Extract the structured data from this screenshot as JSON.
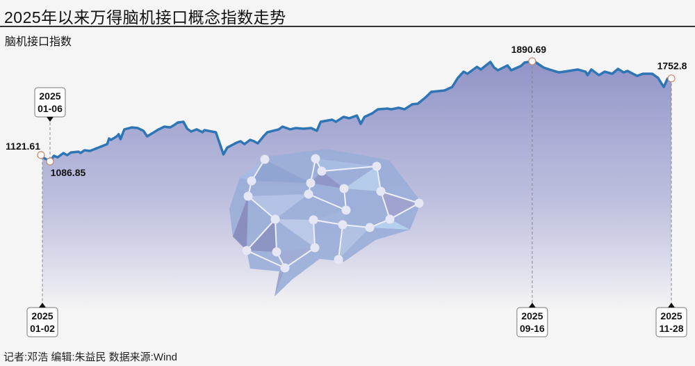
{
  "title": "2025年以来万得脑机接口概念指数走势",
  "subtitle": "脑机接口指数",
  "footer": "记者:邓浩  编辑:朱益民  数据来源:Wind",
  "colors": {
    "line": "#2e75b6",
    "fill_top": "#8c8fc4",
    "background": "#f5f5f5",
    "marker": "#c9866e"
  },
  "illustration": "brain-network-icon",
  "chart_data": {
    "type": "area",
    "title": "2025年以来万得脑机接口概念指数走势",
    "ylabel": "脑机接口指数",
    "xlabel": "",
    "grid": false,
    "annotations": [
      {
        "date": "2025-01-02",
        "value": 1121.61,
        "label": "1121.61",
        "date_label": [
          "2025",
          "01-02"
        ]
      },
      {
        "date": "2025-01-06",
        "value": 1086.85,
        "label": "1086.85",
        "date_label": [
          "2025",
          "01-06"
        ]
      },
      {
        "date": "2025-09-16",
        "value": 1890.69,
        "label": "1890.69",
        "date_label": [
          "2025",
          "09-16"
        ]
      },
      {
        "date": "2025-11-28",
        "value": 1752.8,
        "label": "1752.8",
        "date_label": [
          "2025",
          "11-28"
        ]
      }
    ],
    "x": [
      "2025-01-02",
      "2025-01-06",
      "2025-01-08",
      "2025-01-10",
      "2025-01-13",
      "2025-01-15",
      "2025-01-17",
      "2025-01-21",
      "2025-01-22",
      "2025-01-24",
      "2025-01-27",
      "2025-02-05",
      "2025-02-06",
      "2025-02-07",
      "2025-02-10",
      "2025-02-11",
      "2025-02-12",
      "2025-02-14",
      "2025-02-18",
      "2025-02-21",
      "2025-02-24",
      "2025-02-26",
      "2025-03-04",
      "2025-03-07",
      "2025-03-10",
      "2025-03-12",
      "2025-03-14",
      "2025-03-17",
      "2025-03-19",
      "2025-03-21",
      "2025-03-24",
      "2025-03-27",
      "2025-03-28",
      "2025-04-03",
      "2025-04-07",
      "2025-04-09",
      "2025-04-14",
      "2025-04-16",
      "2025-04-18",
      "2025-04-21",
      "2025-04-23",
      "2025-04-25",
      "2025-04-28",
      "2025-04-30",
      "2025-05-06",
      "2025-05-08",
      "2025-05-12",
      "2025-05-15",
      "2025-05-19",
      "2025-05-23",
      "2025-05-26",
      "2025-05-28",
      "2025-06-03",
      "2025-06-05",
      "2025-06-09",
      "2025-06-12",
      "2025-06-16",
      "2025-06-18",
      "2025-06-20",
      "2025-06-24",
      "2025-06-27",
      "2025-07-02",
      "2025-07-04",
      "2025-07-08",
      "2025-07-11",
      "2025-07-15",
      "2025-07-18",
      "2025-07-22",
      "2025-07-25",
      "2025-08-01",
      "2025-08-05",
      "2025-08-08",
      "2025-08-11",
      "2025-08-13",
      "2025-08-18",
      "2025-08-20",
      "2025-08-25",
      "2025-08-27",
      "2025-08-29",
      "2025-09-03",
      "2025-09-05",
      "2025-09-10",
      "2025-09-12",
      "2025-09-16",
      "2025-09-18",
      "2025-09-22",
      "2025-09-25",
      "2025-09-30",
      "2025-10-10",
      "2025-10-14",
      "2025-10-15",
      "2025-10-17",
      "2025-10-21",
      "2025-10-24",
      "2025-10-28",
      "2025-10-31",
      "2025-11-03",
      "2025-11-05",
      "2025-11-10",
      "2025-11-13",
      "2025-11-18",
      "2025-11-21",
      "2025-11-24",
      "2025-11-26",
      "2025-11-28"
    ],
    "values": [
      1121.61,
      1086.85,
      1132,
      1120,
      1154,
      1137,
      1159,
      1165,
      1154,
      1176,
      1171,
      1226,
      1271,
      1260,
      1288,
      1305,
      1265,
      1344,
      1360,
      1355,
      1333,
      1288,
      1344,
      1366,
      1360,
      1377,
      1399,
      1405,
      1349,
      1327,
      1344,
      1321,
      1338,
      1321,
      1143,
      1198,
      1238,
      1249,
      1226,
      1260,
      1249,
      1232,
      1288,
      1321,
      1344,
      1366,
      1344,
      1355,
      1349,
      1355,
      1333,
      1405,
      1422,
      1405,
      1444,
      1433,
      1455,
      1388,
      1444,
      1472,
      1505,
      1511,
      1505,
      1517,
      1505,
      1545,
      1550,
      1600,
      1645,
      1656,
      1684,
      1757,
      1807,
      1790,
      1846,
      1824,
      1885,
      1840,
      1818,
      1857,
      1818,
      1852,
      1880,
      1890.69,
      1880,
      1840,
      1824,
      1801,
      1824,
      1807,
      1779,
      1824,
      1779,
      1807,
      1790,
      1829,
      1801,
      1813,
      1773,
      1790,
      1790,
      1757,
      1684,
      1751,
      1752.8
    ]
  }
}
